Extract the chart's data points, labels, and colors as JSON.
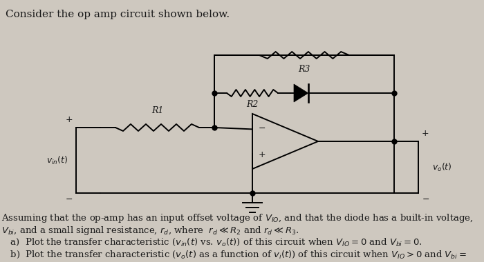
{
  "title_text": "Consider the op amp circuit shown below.",
  "bg_color": "#cec8bf",
  "text_color": "#1a1a1a",
  "body_text_line1": "Assuming that the op-amp has an input offset voltage of $V_{IO}$, and that the diode has a built-in voltage,",
  "body_text_line2": "$V_{bi}$, and a small signal resistance, $r_d$, where  $r_d \\ll R_2$ and $r_d \\ll R_3$.",
  "item_a": "   a)  Plot the transfer characteristic ($v_{in}(t)$ vs. $v_o(t)$) of this circuit when $V_{IO} = 0$ and $V_{bi} = 0$.",
  "item_b": "   b)  Plot the transfer characteristic ($v_o(t)$ as a function of $v_i(t)$) of this circuit when $V_{IO} > 0$ and $V_{bi} =$",
  "font_size_title": 11,
  "font_size_body": 9.5,
  "font_size_label": 9
}
